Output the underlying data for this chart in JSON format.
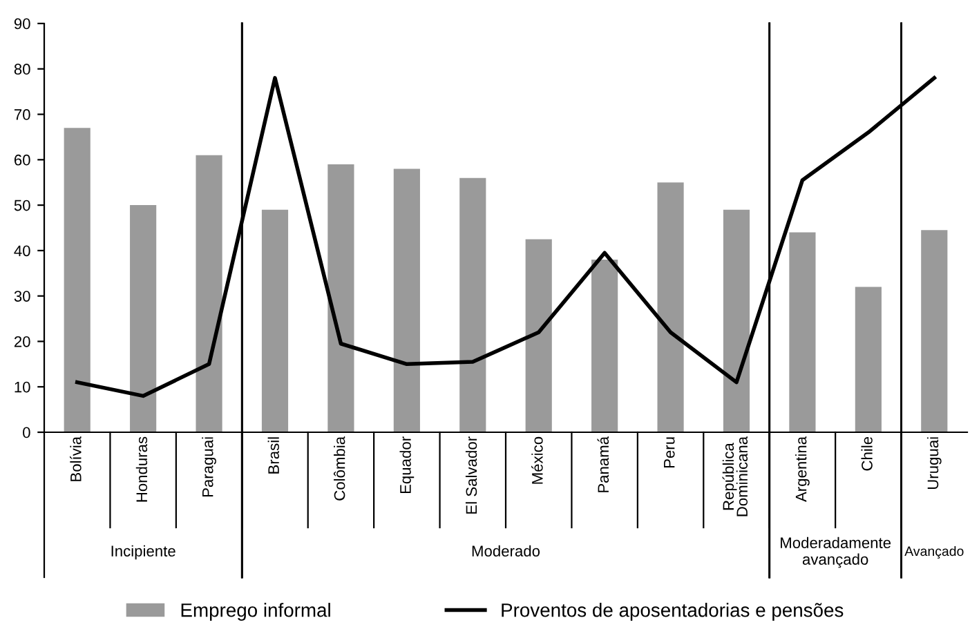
{
  "chart_data": {
    "type": "bar",
    "categories": [
      "Bolívia",
      "Honduras",
      "Paraguai",
      "Brasil",
      "Colômbia",
      "Equador",
      "El Salvador",
      "México",
      "Panamá",
      "Peru",
      "República Dominicana",
      "Argentina",
      "Chile",
      "Uruguai"
    ],
    "series": [
      {
        "name": "Emprego informal",
        "color": "#9a9a9a",
        "values": [
          67,
          50,
          61,
          49,
          59,
          58,
          56,
          42.5,
          38,
          55,
          49,
          44,
          32,
          44.5
        ]
      },
      {
        "name": "Proventos de aposentadorias e pensões",
        "type": "line",
        "color": "#000000",
        "values": [
          11,
          8,
          15,
          78,
          19.5,
          15,
          15.5,
          22,
          39.5,
          22,
          11,
          55.5,
          66,
          78
        ]
      }
    ],
    "ylim": [
      0,
      90
    ],
    "yticks": [
      0,
      10,
      20,
      30,
      40,
      50,
      60,
      70,
      80,
      90
    ],
    "annotations": [
      "Incipiente",
      "Moderado",
      "Moderadamente avançado",
      "Avançado"
    ],
    "grid": false,
    "legend": "bottom",
    "marker": "none",
    "line_style": "solid"
  }
}
